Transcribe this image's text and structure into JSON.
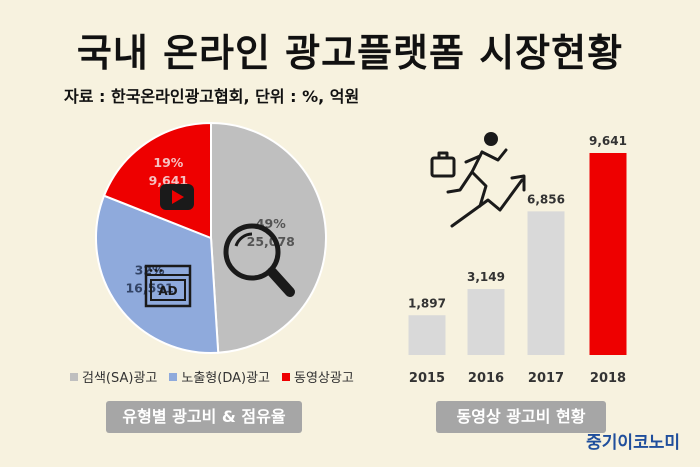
{
  "title": "국내 온라인 광고플랫폼 시장현황",
  "source": "자료 : 한국온라인광고협회, 단위 : %, 억원",
  "chart_data": [
    {
      "type": "pie",
      "slices": [
        {
          "name": "검색(SA)광고",
          "percent": "49%",
          "value": "25,078",
          "share": 0.49,
          "color": "#bfbfbf"
        },
        {
          "name": "노출형(DA)광고",
          "percent": "32%",
          "value": "16,591",
          "share": 0.32,
          "color": "#8faadc"
        },
        {
          "name": "동영상광고",
          "percent": "19%",
          "value": "9,641",
          "share": 0.19,
          "color": "#ee0000"
        }
      ],
      "legend_position": "bottom",
      "caption": "유형별 광고비 & 점유율"
    },
    {
      "type": "bar",
      "categories": [
        "2015",
        "2016",
        "2017",
        "2018"
      ],
      "values": [
        1897,
        3149,
        6856,
        9641
      ],
      "value_labels": [
        "1,897",
        "3,149",
        "6,856",
        "9,641"
      ],
      "bar_colors": [
        "#d9d9d9",
        "#d9d9d9",
        "#d9d9d9",
        "#ee0000"
      ],
      "ylim": [
        0,
        9641
      ],
      "grid": false,
      "caption": "동영상 광고비 현황"
    }
  ],
  "brand": "중기이코노미",
  "icons": [
    "magnifier-icon",
    "ad-window-icon",
    "play-button-icon",
    "running-man-icon",
    "rising-arrow-icon"
  ]
}
